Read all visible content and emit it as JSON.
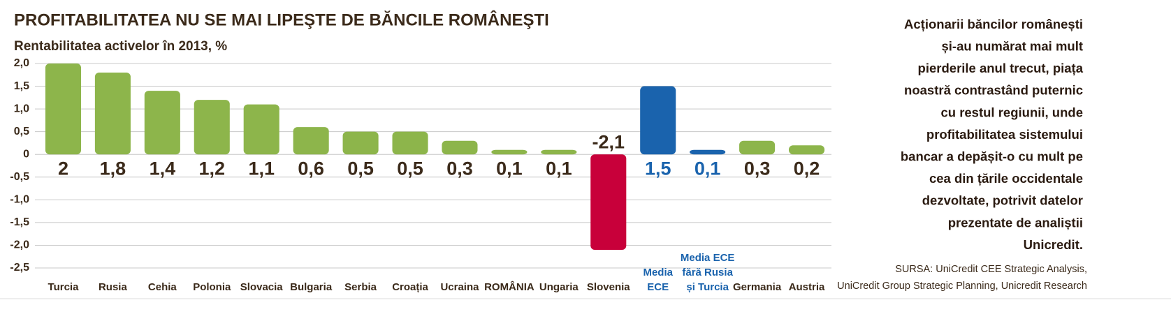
{
  "chart_data": {
    "type": "bar",
    "title": "PROFITABILITATEA NU SE MAI LIPEŞTE DE BĂNCILE ROMÂNEŞTI",
    "subtitle": "Rentabilitatea activelor în 2013, %",
    "categories": [
      "Turcia",
      "Rusia",
      "Cehia",
      "Polonia",
      "Slovacia",
      "Bulgaria",
      "Serbia",
      "Croația",
      "Ucraina",
      "ROMÂNIA",
      "Ungaria",
      "Slovenia",
      "Media\nECE",
      "Media ECE\nfără Rusia\nși Turcia",
      "Germania",
      "Austria"
    ],
    "values": [
      2,
      1.8,
      1.4,
      1.2,
      1.1,
      0.6,
      0.5,
      0.5,
      0.3,
      0.1,
      0.1,
      -2.1,
      1.5,
      0.1,
      0.3,
      0.2
    ],
    "value_labels": [
      "2",
      "1,8",
      "1,4",
      "1,2",
      "1,1",
      "0,6",
      "0,5",
      "0,5",
      "0,3",
      "0,1",
      "0,1",
      "-2,1",
      "1,5",
      "0,1",
      "0,3",
      "0,2"
    ],
    "colors": [
      "#8db54b",
      "#8db54b",
      "#8db54b",
      "#8db54b",
      "#8db54b",
      "#8db54b",
      "#8db54b",
      "#8db54b",
      "#8db54b",
      "#8db54b",
      "#8db54b",
      "#c8003a",
      "#1a63ad",
      "#1a63ad",
      "#8db54b",
      "#8db54b"
    ],
    "ylim": [
      -2.5,
      2
    ],
    "yticks": [
      {
        "value": 2,
        "label": "2,0"
      },
      {
        "value": 1.5,
        "label": "1,5"
      },
      {
        "value": 1,
        "label": "1,0"
      },
      {
        "value": 0.5,
        "label": "0,5"
      },
      0,
      {
        "value": -0.5,
        "label": "-0,5"
      },
      {
        "value": -1,
        "label": "-1,0"
      },
      {
        "value": -1.5,
        "label": "-1,5"
      },
      {
        "value": -2,
        "label": "-2,0"
      },
      {
        "value": -2.5,
        "label": "-2,5"
      }
    ],
    "grid": true,
    "annotation": [
      "Acționarii băncilor românești",
      "și-au numărat mai mult",
      "pierderile anul trecut, piața",
      "noastră contrastând puternic",
      "cu restul regiunii, unde",
      "profitabilitatea sistemului",
      "bancar a depășit-o cu mult pe",
      "cea din țările occidentale",
      "dezvoltate, potrivit datelor",
      "prezentate de analiștii",
      "Unicredit."
    ],
    "source": [
      "SURSA: UniCredit CEE Strategic Analysis,",
      "UniCredit Group Strategic Planning, Unicredit Research"
    ]
  }
}
